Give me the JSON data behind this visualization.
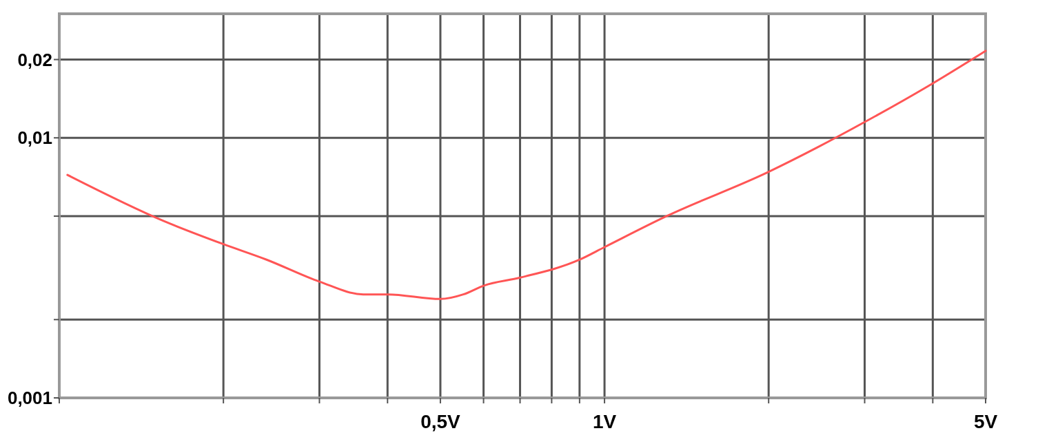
{
  "chart_data": {
    "type": "line",
    "log": "xy",
    "grid": true,
    "marker": "none",
    "line_style": "solid",
    "x": [
      0.1035,
      0.155,
      0.2,
      0.24,
      0.3,
      0.361,
      0.4,
      0.5,
      0.551,
      0.6,
      0.7,
      0.9,
      1,
      1.3,
      2,
      2.46,
      3,
      3.92,
      5
    ],
    "series": [
      {
        "color": "#ff5555",
        "values": [
          0.0072,
          0.0048,
          0.0039,
          0.0034,
          0.0028,
          0.0025,
          0.0025,
          0.0024,
          0.0025,
          0.0027,
          0.0029,
          0.0034,
          0.0038,
          0.005,
          0.0074,
          0.0092,
          0.0115,
          0.0158,
          0.0216
        ]
      }
    ],
    "xlim": [
      0.1,
      5
    ],
    "xticks": [
      {
        "value": 0.1,
        "label": null
      },
      {
        "value": 0.2,
        "label": null
      },
      {
        "value": 0.3,
        "label": null
      },
      {
        "value": 0.4,
        "label": null
      },
      {
        "value": 0.5,
        "label": "0,5V"
      },
      {
        "value": 0.6,
        "label": null
      },
      {
        "value": 0.7,
        "label": null
      },
      {
        "value": 0.8,
        "label": null
      },
      {
        "value": 0.9,
        "label": null
      },
      {
        "value": 1,
        "label": "1V"
      },
      {
        "value": 2,
        "label": null
      },
      {
        "value": 3,
        "label": null
      },
      {
        "value": 4,
        "label": null
      },
      {
        "value": 5,
        "label": "5V"
      }
    ],
    "ylim": [
      0.001,
      0.03
    ],
    "yticks": [
      {
        "value": 0.001,
        "label": "0,001"
      },
      {
        "value": 0.002,
        "label": null
      },
      {
        "value": 0.005,
        "label": null
      },
      {
        "value": 0.01,
        "label": "0,01"
      },
      {
        "value": 0.02,
        "label": "0,02"
      }
    ]
  }
}
